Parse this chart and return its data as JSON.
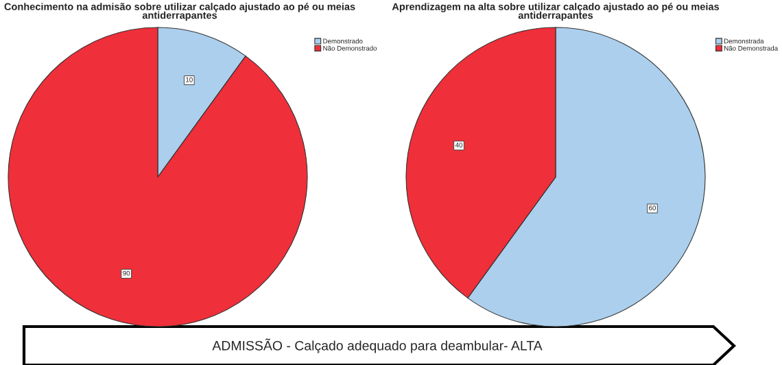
{
  "chart_data": [
    {
      "type": "pie",
      "title": "Conhecimento na admisão sobre utilizar calçado ajustado ao pé ou meias antiderrapantes",
      "categories": [
        "Demonstrado",
        "Não Demonstrado"
      ],
      "values": [
        10,
        90
      ],
      "colors": [
        "#abcfed",
        "#ef2f39"
      ],
      "data_labels": true,
      "legend": "top right"
    },
    {
      "type": "pie",
      "title": "Aprendizagem na alta sobre utilizar calçado ajustado ao pé ou meias antiderrapantes",
      "categories": [
        "Demonstrada",
        "Não Demonstrada"
      ],
      "values": [
        60,
        40
      ],
      "colors": [
        "#abcfed",
        "#ef2f39"
      ],
      "data_labels": true,
      "legend": "top right"
    },
    {
      "type": "other",
      "annotations": [
        "ADMISSÃO - Calçado adequado para deambular- ALTA"
      ]
    }
  ]
}
